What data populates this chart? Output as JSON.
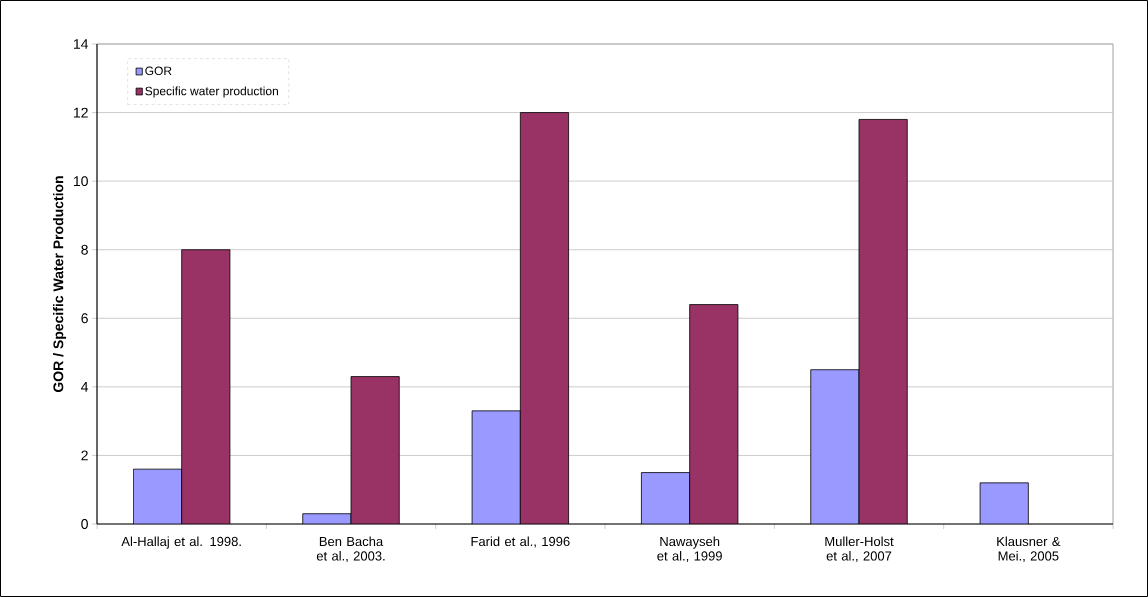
{
  "chart_data": {
    "type": "bar",
    "ylabel": "GOR / Specific Water Production",
    "categories": [
      "Al-Hallaj et al. 1998.",
      "Ben Bacha et al., 2003.",
      "Farid et al., 1996",
      "Nawayseh et al., 1999",
      "Muller-Holst et al., 2007",
      "Klausner & Mei., 2005"
    ],
    "series": [
      {
        "name": "GOR",
        "color": "#9999ff",
        "values": [
          1.6,
          0.3,
          3.3,
          1.5,
          4.5,
          1.2
        ]
      },
      {
        "name": "Specific water production",
        "color": "#993366",
        "values": [
          8,
          4.3,
          12,
          6.4,
          11.8,
          null
        ]
      }
    ],
    "ylim": [
      0,
      14
    ],
    "yticks": [
      0,
      2,
      4,
      6,
      8,
      10,
      12,
      14
    ],
    "grid": "y",
    "legend": "top left"
  }
}
